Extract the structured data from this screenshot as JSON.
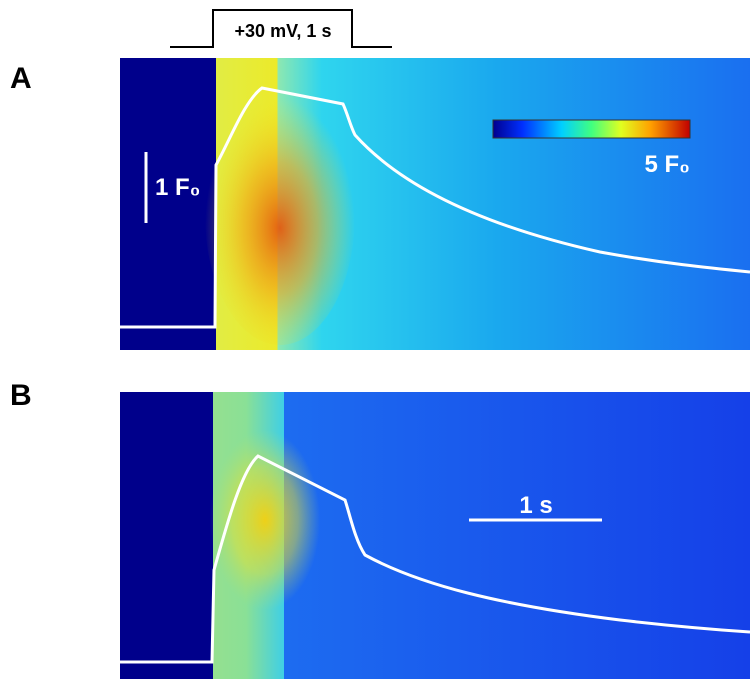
{
  "protocol": {
    "label": "+30 mV, 1 s"
  },
  "panels": [
    {
      "label": "A",
      "colorbar_label": "5 F₀",
      "scale_label": "1 F₀"
    },
    {
      "label": "B",
      "scale_label": "1 s"
    }
  ]
}
